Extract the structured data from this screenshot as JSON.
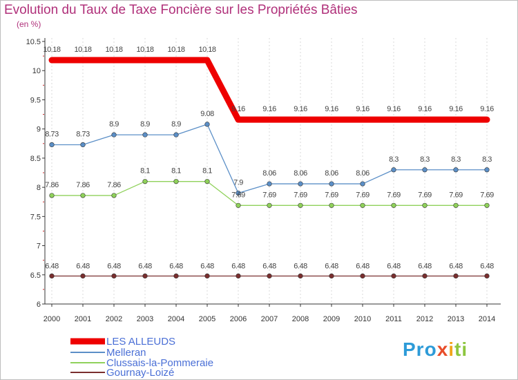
{
  "header": {
    "title": "Evolution du Taux de Taxe Foncière sur les Propriétés Bâties",
    "subtitle": "(en %)"
  },
  "logo": {
    "text": "Proxiti"
  },
  "chart_data": {
    "type": "line",
    "title": "Evolution du Taux de Taxe Foncière sur les Propriétés Bâties",
    "ylabel": "(en %)",
    "xlabel": "",
    "ylim": [
      6,
      10.5
    ],
    "yticks": [
      "6",
      "6.5",
      "7",
      "7.5",
      "8",
      "8.5",
      "9",
      "9.5",
      "10",
      "10.5"
    ],
    "x": [
      "2000",
      "2001",
      "2002",
      "2003",
      "2004",
      "2005",
      "2006",
      "2007",
      "2008",
      "2009",
      "2010",
      "2011",
      "2012",
      "2013",
      "2014"
    ],
    "legend_position": "bottom-left",
    "series": [
      {
        "name": "LES ALLEUDS",
        "color": "#ee0000",
        "values": [
          10.18,
          10.18,
          10.18,
          10.18,
          10.18,
          10.18,
          9.16,
          9.16,
          9.16,
          9.16,
          9.16,
          9.16,
          9.16,
          9.16,
          9.16
        ],
        "labels": [
          "10.18",
          "10.18",
          "10.18",
          "10.18",
          "10.18",
          "10.18",
          "9.16",
          "9.16",
          "9.16",
          "9.16",
          "9.16",
          "9.16",
          "9.16",
          "9.16",
          "9.16"
        ]
      },
      {
        "name": "Melleran",
        "color": "#5b8fc7",
        "values": [
          8.73,
          8.73,
          8.9,
          8.9,
          8.9,
          9.08,
          7.9,
          8.06,
          8.06,
          8.06,
          8.06,
          8.3,
          8.3,
          8.3,
          8.3
        ],
        "labels": [
          "8.73",
          "8.73",
          "8.9",
          "8.9",
          "8.9",
          "9.08",
          "7.9",
          "8.06",
          "8.06",
          "8.06",
          "8.06",
          "8.3",
          "8.3",
          "8.3",
          "8.3"
        ]
      },
      {
        "name": "Clussais-la-Pommeraie",
        "color": "#8fd15a",
        "values": [
          7.86,
          7.86,
          7.86,
          8.1,
          8.1,
          8.1,
          7.69,
          7.69,
          7.69,
          7.69,
          7.69,
          7.69,
          7.69,
          7.69,
          7.69
        ],
        "labels": [
          "7.86",
          "7.86",
          "7.86",
          "8.1",
          "8.1",
          "8.1",
          "7.69",
          "7.69",
          "7.69",
          "7.69",
          "7.69",
          "7.69",
          "7.69",
          "7.69",
          "7.69"
        ]
      },
      {
        "name": "Gournay-Loizé",
        "color": "#7a2f2f",
        "values": [
          6.48,
          6.48,
          6.48,
          6.48,
          6.48,
          6.48,
          6.48,
          6.48,
          6.48,
          6.48,
          6.48,
          6.48,
          6.48,
          6.48,
          6.48
        ],
        "labels": [
          "6.48",
          "6.48",
          "6.48",
          "6.48",
          "6.48",
          "6.48",
          "6.48",
          "6.48",
          "6.48",
          "6.48",
          "6.48",
          "6.48",
          "6.48",
          "6.48",
          "6.48"
        ]
      }
    ]
  }
}
